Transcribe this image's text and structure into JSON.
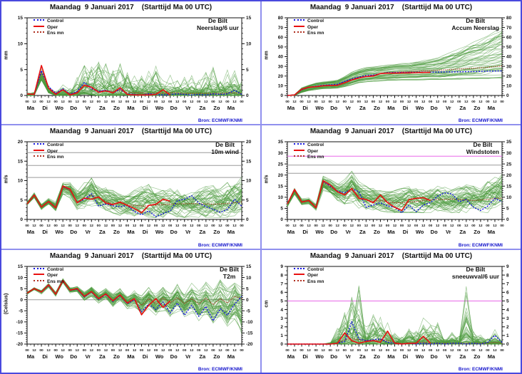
{
  "panel_title": "Maandag  9 Januari 2017    (Starttijd Ma 00 UTC)",
  "source_label": "Bron: ECMWF/KNMI",
  "legend": {
    "control": "Control",
    "oper": "Oper",
    "ens_mean": "Ens mn"
  },
  "colors": {
    "control": "#1515e0",
    "oper": "#e81010",
    "ens_mean": "#b03020",
    "ensemble": "#4c9a3e",
    "threshold_grey": "#9a9a9a",
    "threshold_magenta": "#e868e8",
    "frame": "#111111",
    "source_text": "#1515cc"
  },
  "x_axis": {
    "total_hours": 360,
    "hour_tick_labels": [
      "00",
      "12",
      "00",
      "12",
      "00",
      "12",
      "00",
      "12",
      "00",
      "12",
      "00",
      "12",
      "00",
      "12",
      "00",
      "12",
      "00",
      "12",
      "00",
      "12",
      "00",
      "12",
      "00",
      "12",
      "00",
      "12",
      "00",
      "12",
      "00",
      "12",
      "00"
    ],
    "day_labels": [
      "Ma",
      "Di",
      "Wo",
      "Do",
      "Vr",
      "Za",
      "Zo",
      "Ma",
      "Di",
      "Wo",
      "Do",
      "Vr",
      "Za",
      "Zo",
      "Ma"
    ]
  },
  "chart_data": [
    {
      "type": "line",
      "station": "De Bilt",
      "variable": "Neerslag/6 uur",
      "ylabel": "mm",
      "ylim": [
        0,
        15
      ],
      "yticks": [
        0,
        5,
        10,
        15
      ],
      "minor_step": 1,
      "style": "spiky",
      "thresholds": [],
      "series": {
        "oper": [
          0.3,
          0.2,
          5.8,
          1.4,
          0.2,
          1.1,
          0.1,
          0.5,
          2.0,
          1.6,
          0.6,
          0.9,
          0.5,
          1.5,
          0.2,
          0.1,
          0.1,
          0.1,
          0.2,
          1.1,
          0.1
        ],
        "control": [
          0.3,
          0.2,
          4.8,
          1.7,
          0.4,
          1.3,
          0.2,
          0.8,
          2.5,
          1.3,
          0.8,
          1.0,
          0.5,
          1.2,
          0.3,
          0.2,
          0.1,
          0.3,
          0.2,
          0.1,
          0.2,
          0.3,
          0.2,
          0.1,
          0.2,
          0.1,
          0.3,
          0.2,
          0.3,
          1.0,
          0.2
        ],
        "ens_mean": [
          0.3,
          0.3,
          4.5,
          1.5,
          0.5,
          1.0,
          0.3,
          0.6,
          1.8,
          1.5,
          0.9,
          0.9,
          0.8,
          1.0,
          0.6,
          0.5,
          0.5,
          0.4,
          0.5,
          0.4,
          0.5,
          0.5,
          0.4,
          0.4,
          0.4,
          0.4,
          0.4,
          0.4,
          0.5,
          0.5,
          0.4
        ]
      },
      "ensemble_envelope": {
        "min": [
          0,
          0,
          3.0,
          0.5,
          0,
          0,
          0,
          0,
          0.2,
          0.1,
          0,
          0,
          0,
          0,
          0,
          0,
          0,
          0,
          0,
          0,
          0,
          0,
          0,
          0,
          0,
          0,
          0,
          0,
          0,
          0,
          0
        ],
        "max": [
          0.8,
          1.0,
          6.5,
          2.5,
          1.5,
          3.0,
          1.5,
          4.0,
          8.0,
          7.5,
          9.0,
          7.5,
          6.0,
          6.5,
          5.0,
          4.5,
          4.0,
          5.5,
          8.0,
          5.0,
          4.0,
          3.5,
          4.0,
          4.5,
          3.0,
          4.5,
          5.5,
          4.0,
          5.5,
          5.5,
          3.0
        ]
      }
    },
    {
      "type": "line",
      "station": "De Bilt",
      "variable": "Accum Neerslag",
      "ylabel": "mm",
      "ylim": [
        0,
        80
      ],
      "yticks": [
        0,
        10,
        20,
        30,
        40,
        50,
        60,
        70,
        80
      ],
      "minor_step": 2,
      "style": "accum",
      "thresholds": [],
      "series": {
        "oper": [
          0,
          0.5,
          6.5,
          8.5,
          9.0,
          10.0,
          10.2,
          10.5,
          13.0,
          16.0,
          18.0,
          19.5,
          20.0,
          22.5,
          23.0,
          23.0,
          23.2,
          23.3,
          23.5,
          23.7,
          23.8
        ],
        "control": [
          0,
          0.5,
          6.0,
          8.5,
          9.5,
          10.5,
          11.0,
          11.5,
          14.5,
          17.0,
          19.0,
          20.5,
          21.0,
          22.5,
          23.5,
          23.6,
          23.7,
          23.8,
          23.9,
          24.0,
          24.0,
          24.1,
          24.2,
          24.3,
          24.4,
          24.5,
          24.6,
          24.8,
          25.0,
          25.2,
          25.3
        ],
        "ens_mean": [
          0,
          0.5,
          5.5,
          8.0,
          9.0,
          10.0,
          10.5,
          11.0,
          14.0,
          16.5,
          18.5,
          20.0,
          21.0,
          22.5,
          23.5,
          24.0,
          24.3,
          24.6,
          25.0,
          25.3,
          25.6,
          26.0,
          26.4,
          26.8,
          27.2,
          27.6,
          28.0,
          28.5,
          29.0,
          29.8,
          30.5
        ]
      },
      "ensemble_envelope": {
        "min": [
          0,
          0,
          3.0,
          5.0,
          6.0,
          7.0,
          7.0,
          7.5,
          9.0,
          11.0,
          13.0,
          14.0,
          14.5,
          15.0,
          15.5,
          15.5,
          15.5,
          15.6,
          15.7,
          15.8,
          15.9,
          16.0,
          16.0,
          16.1,
          16.2,
          16.3,
          16.4,
          16.5,
          16.6,
          16.8,
          17.0
        ],
        "max": [
          0,
          1.0,
          8.0,
          11.0,
          13.0,
          14.0,
          15.0,
          16.0,
          20.0,
          24.0,
          27.0,
          29.0,
          30.0,
          31.0,
          32.0,
          32.5,
          33.0,
          34.0,
          35.0,
          36.0,
          37.0,
          39.0,
          42.0,
          45.0,
          48.0,
          52.0,
          55.0,
          58.0,
          62.0,
          66.0,
          70.0
        ]
      }
    },
    {
      "type": "line",
      "station": "De Bilt",
      "variable": "10m wind",
      "ylabel": "m/s",
      "ylim": [
        0,
        20
      ],
      "yticks": [
        0,
        5,
        10,
        15,
        20
      ],
      "minor_step": 1,
      "style": "smooth",
      "thresholds": [
        {
          "value": 10.8,
          "color_key": "threshold_grey"
        },
        {
          "value": 13.9,
          "color_key": "threshold_grey"
        },
        {
          "value": 17.2,
          "color_key": "threshold_grey"
        }
      ],
      "series": {
        "oper": [
          4.0,
          6.3,
          3.2,
          4.6,
          3.0,
          8.6,
          7.8,
          4.3,
          5.5,
          5.2,
          5.8,
          4.2,
          3.8,
          4.5,
          3.6,
          2.8,
          1.7,
          3.6,
          3.9,
          5.2,
          4.7
        ],
        "control": [
          4.0,
          6.3,
          3.2,
          4.6,
          3.0,
          8.5,
          7.7,
          4.3,
          5.2,
          6.6,
          3.4,
          4.0,
          3.5,
          3.3,
          3.6,
          2.0,
          1.2,
          2.2,
          0.7,
          1.5,
          2.2,
          4.8,
          5.2,
          6.1,
          4.2,
          3.3,
          2.6,
          1.8,
          2.6,
          5.2,
          3.4
        ],
        "ens_mean": [
          4.0,
          6.2,
          3.3,
          4.6,
          3.2,
          8.2,
          7.4,
          4.5,
          5.3,
          6.2,
          5.5,
          4.6,
          4.0,
          4.2,
          3.8,
          3.6,
          3.4,
          3.6,
          3.7,
          3.8,
          3.9,
          4.0,
          4.0,
          4.1,
          4.0,
          4.0,
          3.9,
          4.0,
          4.1,
          4.3,
          4.5
        ]
      },
      "ensemble_envelope": {
        "min": [
          3.5,
          5.5,
          2.5,
          3.8,
          2.2,
          6.5,
          5.5,
          2.5,
          2.5,
          3.0,
          2.0,
          1.5,
          1.2,
          1.0,
          0.8,
          0.6,
          0.5,
          0.5,
          0.5,
          0.5,
          0.6,
          0.5,
          0.5,
          0.5,
          0.5,
          0.5,
          0.4,
          0.5,
          0.5,
          0.6,
          0.8
        ],
        "max": [
          4.8,
          7.0,
          4.2,
          5.5,
          4.5,
          9.8,
          9.5,
          8.0,
          9.5,
          11.5,
          9.0,
          8.5,
          7.5,
          7.0,
          6.5,
          7.5,
          8.5,
          9.0,
          8.0,
          7.5,
          8.0,
          8.5,
          8.0,
          7.5,
          8.0,
          8.5,
          9.0,
          8.0,
          9.5,
          10.0,
          11.0
        ]
      }
    },
    {
      "type": "line",
      "station": "De Bilt",
      "variable": "Windstoten",
      "ylabel": "m/s",
      "ylim": [
        0,
        35
      ],
      "yticks": [
        0,
        5,
        10,
        15,
        20,
        25,
        30,
        35
      ],
      "minor_step": 1,
      "style": "smooth",
      "thresholds": [
        {
          "value": 20.8,
          "color_key": "threshold_grey"
        },
        {
          "value": 24.5,
          "color_key": "threshold_grey"
        },
        {
          "value": 28.5,
          "color_key": "threshold_magenta"
        }
      ],
      "series": {
        "oper": [
          7.0,
          13.5,
          7.8,
          8.5,
          5.3,
          17.5,
          15.5,
          12.5,
          11.0,
          14.0,
          9.5,
          9.0,
          7.5,
          11.0,
          7.5,
          5.5,
          4.0,
          9.0,
          9.5,
          9.8,
          8.5
        ],
        "control": [
          7.0,
          13.5,
          7.8,
          8.5,
          5.3,
          17.3,
          15.0,
          12.8,
          12.0,
          13.8,
          12.5,
          5.5,
          6.5,
          7.5,
          6.0,
          5.5,
          3.0,
          6.5,
          3.5,
          6.5,
          7.5,
          10.5,
          12.0,
          11.5,
          8.0,
          9.0,
          5.5,
          4.0,
          6.0,
          9.5,
          8.0
        ],
        "ens_mean": [
          7.0,
          13.0,
          8.0,
          8.5,
          5.5,
          16.8,
          14.8,
          12.5,
          11.5,
          13.0,
          10.5,
          9.0,
          8.0,
          8.5,
          8.0,
          7.5,
          7.5,
          7.8,
          8.0,
          8.5,
          8.8,
          9.0,
          9.0,
          9.2,
          9.0,
          8.8,
          8.5,
          8.8,
          9.0,
          9.5,
          9.5
        ]
      },
      "ensemble_envelope": {
        "min": [
          5.5,
          11.0,
          6.5,
          7.0,
          4.0,
          13.0,
          11.0,
          8.0,
          6.0,
          7.0,
          5.0,
          4.0,
          3.5,
          3.5,
          3.0,
          3.0,
          3.0,
          3.0,
          3.0,
          3.0,
          3.0,
          3.0,
          3.0,
          3.0,
          3.0,
          3.0,
          3.0,
          3.0,
          3.0,
          3.5,
          4.0
        ],
        "max": [
          8.0,
          14.5,
          9.5,
          10.0,
          7.0,
          19.5,
          18.0,
          16.0,
          18.0,
          22.0,
          17.0,
          15.0,
          14.0,
          13.0,
          12.5,
          13.0,
          14.0,
          15.0,
          14.0,
          13.5,
          14.0,
          15.0,
          14.5,
          14.0,
          15.0,
          16.0,
          15.0,
          14.0,
          17.0,
          19.0,
          21.0
        ]
      }
    },
    {
      "type": "line",
      "station": "De Bilt",
      "variable": "T2m",
      "ylabel": "(Celsius)",
      "ylim": [
        -20,
        15
      ],
      "yticks": [
        -20,
        -15,
        -10,
        -5,
        0,
        5,
        10,
        15
      ],
      "minor_step": 1,
      "style": "smooth",
      "thresholds": [
        {
          "value": 0,
          "color_key": "threshold_grey"
        }
      ],
      "series": {
        "oper": [
          3.0,
          5.0,
          3.5,
          6.7,
          2.5,
          8.7,
          4.3,
          5.0,
          1.5,
          3.7,
          0.5,
          2.6,
          -0.5,
          2.2,
          -1.5,
          0.5,
          -6.8,
          -2.5,
          0.5,
          -3.5,
          -0.5
        ],
        "control": [
          3.0,
          5.0,
          3.5,
          6.5,
          2.5,
          8.5,
          4.2,
          4.8,
          1.3,
          3.5,
          0.2,
          2.4,
          -0.8,
          2.0,
          -1.8,
          0.0,
          -5.5,
          -2.0,
          -4.5,
          -1.0,
          -6.0,
          -1.5,
          -7.0,
          -2.5,
          -7.5,
          -3.0,
          -9.5,
          -4.0,
          -7.0,
          -2.0,
          1.5
        ],
        "ens_mean": [
          3.0,
          5.0,
          3.5,
          6.5,
          2.6,
          8.4,
          4.4,
          4.9,
          1.6,
          3.6,
          0.6,
          2.5,
          -0.3,
          2.1,
          -1.2,
          0.3,
          -2.5,
          0.5,
          -1.8,
          0.8,
          -1.5,
          1.0,
          -1.8,
          0.5,
          -2.0,
          0.8,
          -2.2,
          0.5,
          -1.5,
          1.5,
          0.5
        ]
      },
      "ensemble_envelope": {
        "min": [
          2.2,
          4.2,
          2.5,
          5.5,
          1.5,
          7.5,
          3.0,
          3.5,
          -0.5,
          1.5,
          -1.5,
          0.5,
          -3.0,
          -0.5,
          -4.0,
          -3.5,
          -7.0,
          -4.0,
          -7.0,
          -5.0,
          -8.0,
          -5.5,
          -9.0,
          -6.0,
          -10.0,
          -7.0,
          -11.0,
          -8.0,
          -12.0,
          -9.0,
          -15.5
        ],
        "max": [
          3.8,
          5.8,
          4.5,
          7.5,
          3.5,
          9.5,
          5.5,
          6.0,
          3.5,
          6.0,
          3.0,
          5.0,
          2.5,
          5.0,
          2.0,
          4.5,
          2.0,
          5.5,
          2.5,
          6.0,
          3.0,
          7.0,
          3.5,
          7.5,
          4.0,
          8.0,
          4.5,
          9.0,
          5.0,
          10.5,
          8.0
        ]
      }
    },
    {
      "type": "line",
      "station": "De Bilt",
      "variable": "sneeuwval/6 uur",
      "ylabel": "cm",
      "ylim": [
        0,
        9
      ],
      "yticks": [
        0,
        1,
        2,
        3,
        4,
        5,
        6,
        7,
        8,
        9
      ],
      "minor_step": 0.5,
      "style": "spiky",
      "thresholds": [
        {
          "value": 5,
          "color_key": "threshold_magenta"
        }
      ],
      "series": {
        "oper": [
          0,
          0,
          0,
          0,
          0,
          0,
          0,
          0.1,
          1.3,
          0.4,
          0.1,
          0.3,
          0.4,
          0.2,
          1.5,
          0.1,
          0,
          0.1,
          0.1,
          0.9,
          0.1
        ],
        "control": [
          0,
          0,
          0,
          0,
          0,
          0,
          0,
          0.1,
          0.3,
          2.6,
          0.6,
          0.4,
          0.5,
          0.6,
          0.2,
          0.1,
          0,
          0.1,
          0,
          0.1,
          0,
          0.1,
          0,
          0.1,
          0.1,
          0,
          0.1,
          0,
          0.2,
          1.0,
          0.2
        ],
        "ens_mean": [
          0,
          0,
          0,
          0,
          0,
          0,
          0,
          0.1,
          0.5,
          0.6,
          0.5,
          0.4,
          0.4,
          0.5,
          0.4,
          0.2,
          0.1,
          0.1,
          0.1,
          0.2,
          0.1,
          0.1,
          0.1,
          0.1,
          0.1,
          0.1,
          0.1,
          0.1,
          0.1,
          0.2,
          0.1
        ]
      },
      "ensemble_envelope": {
        "min": [
          0,
          0,
          0,
          0,
          0,
          0,
          0,
          0,
          0,
          0,
          0,
          0,
          0,
          0,
          0,
          0,
          0,
          0,
          0,
          0,
          0,
          0,
          0,
          0,
          0,
          0,
          0,
          0,
          0,
          0,
          0
        ],
        "max": [
          0,
          0,
          0,
          0,
          0,
          0,
          0.2,
          3.0,
          6.7,
          5.5,
          7.0,
          2.2,
          3.5,
          4.5,
          2.5,
          1.5,
          1.0,
          2.0,
          1.8,
          3.6,
          3.5,
          2.5,
          1.0,
          1.5,
          1.0,
          8.5,
          2.0,
          1.2,
          0.8,
          1.9,
          0.5
        ]
      }
    }
  ]
}
